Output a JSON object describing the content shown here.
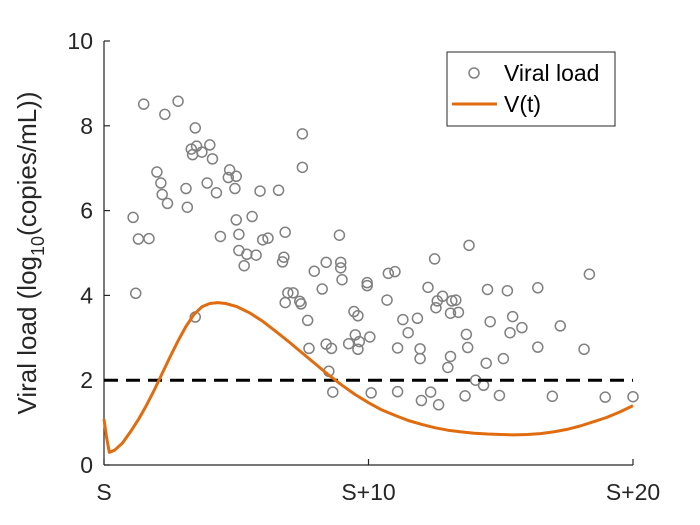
{
  "chart_data": {
    "type": "scatter",
    "ylabel_prefix": "Viral load (log",
    "ylabel_sub": "10",
    "ylabel_suffix": "(copies/mL))",
    "xlim": [
      0,
      20
    ],
    "ylim": [
      0,
      10
    ],
    "x_ticks": [
      {
        "value": 0,
        "label": "S"
      },
      {
        "value": 10,
        "label": "S+10"
      },
      {
        "value": 20,
        "label": "S+20"
      }
    ],
    "y_ticks": [
      {
        "value": 0,
        "label": "0"
      },
      {
        "value": 2,
        "label": "2"
      },
      {
        "value": 4,
        "label": "4"
      },
      {
        "value": 6,
        "label": "6"
      },
      {
        "value": 8,
        "label": "8"
      },
      {
        "value": 10,
        "label": "10"
      }
    ],
    "threshold": 2,
    "grid": false,
    "legend_position": "top-right",
    "legend": [
      "Viral load",
      "V(t)"
    ],
    "colors": {
      "scatter": "#808080",
      "curve": "#E06C0F",
      "threshold": "#000000",
      "axis": "#262626"
    },
    "scatter": [
      {
        "x": 1.1,
        "y": 5.84
      },
      {
        "x": 1.2,
        "y": 4.05
      },
      {
        "x": 1.3,
        "y": 5.33
      },
      {
        "x": 1.5,
        "y": 8.51
      },
      {
        "x": 1.7,
        "y": 5.34
      },
      {
        "x": 2.0,
        "y": 6.91
      },
      {
        "x": 2.15,
        "y": 6.65
      },
      {
        "x": 2.2,
        "y": 6.38
      },
      {
        "x": 2.3,
        "y": 8.27
      },
      {
        "x": 2.4,
        "y": 6.17
      },
      {
        "x": 2.8,
        "y": 8.58
      },
      {
        "x": 3.1,
        "y": 6.52
      },
      {
        "x": 3.15,
        "y": 6.08
      },
      {
        "x": 3.3,
        "y": 7.45
      },
      {
        "x": 3.35,
        "y": 7.32
      },
      {
        "x": 3.45,
        "y": 7.95
      },
      {
        "x": 3.5,
        "y": 7.52
      },
      {
        "x": 3.45,
        "y": 3.49
      },
      {
        "x": 3.7,
        "y": 7.38
      },
      {
        "x": 3.9,
        "y": 6.65
      },
      {
        "x": 4.0,
        "y": 7.55
      },
      {
        "x": 4.1,
        "y": 7.22
      },
      {
        "x": 4.25,
        "y": 6.42
      },
      {
        "x": 4.4,
        "y": 5.39
      },
      {
        "x": 4.75,
        "y": 6.96
      },
      {
        "x": 4.7,
        "y": 6.78
      },
      {
        "x": 4.95,
        "y": 6.52
      },
      {
        "x": 5.0,
        "y": 6.81
      },
      {
        "x": 5.0,
        "y": 5.78
      },
      {
        "x": 5.1,
        "y": 5.44
      },
      {
        "x": 5.1,
        "y": 5.06
      },
      {
        "x": 5.3,
        "y": 4.7
      },
      {
        "x": 5.4,
        "y": 4.97
      },
      {
        "x": 5.6,
        "y": 5.86
      },
      {
        "x": 5.75,
        "y": 4.95
      },
      {
        "x": 5.9,
        "y": 6.46
      },
      {
        "x": 6.0,
        "y": 5.31
      },
      {
        "x": 6.2,
        "y": 5.35
      },
      {
        "x": 6.6,
        "y": 6.48
      },
      {
        "x": 6.75,
        "y": 4.79
      },
      {
        "x": 6.8,
        "y": 4.9
      },
      {
        "x": 6.85,
        "y": 5.49
      },
      {
        "x": 6.85,
        "y": 3.83
      },
      {
        "x": 6.95,
        "y": 4.06
      },
      {
        "x": 7.15,
        "y": 4.06
      },
      {
        "x": 7.4,
        "y": 3.86
      },
      {
        "x": 7.45,
        "y": 3.8
      },
      {
        "x": 7.5,
        "y": 7.02
      },
      {
        "x": 7.5,
        "y": 7.81
      },
      {
        "x": 7.7,
        "y": 3.41
      },
      {
        "x": 7.75,
        "y": 2.75
      },
      {
        "x": 7.95,
        "y": 4.57
      },
      {
        "x": 8.25,
        "y": 4.15
      },
      {
        "x": 8.4,
        "y": 4.78
      },
      {
        "x": 8.4,
        "y": 2.85
      },
      {
        "x": 8.5,
        "y": 2.21
      },
      {
        "x": 8.6,
        "y": 2.75
      },
      {
        "x": 8.65,
        "y": 1.72
      },
      {
        "x": 8.9,
        "y": 5.42
      },
      {
        "x": 8.95,
        "y": 4.78
      },
      {
        "x": 8.95,
        "y": 4.65
      },
      {
        "x": 9.0,
        "y": 4.37
      },
      {
        "x": 9.25,
        "y": 2.86
      },
      {
        "x": 9.45,
        "y": 3.62
      },
      {
        "x": 9.5,
        "y": 3.07
      },
      {
        "x": 9.6,
        "y": 3.52
      },
      {
        "x": 9.6,
        "y": 2.73
      },
      {
        "x": 9.65,
        "y": 2.91
      },
      {
        "x": 9.95,
        "y": 4.3
      },
      {
        "x": 9.95,
        "y": 4.23
      },
      {
        "x": 10.05,
        "y": 3.02
      },
      {
        "x": 10.1,
        "y": 1.7
      },
      {
        "x": 10.7,
        "y": 3.89
      },
      {
        "x": 10.75,
        "y": 4.52
      },
      {
        "x": 11.0,
        "y": 4.56
      },
      {
        "x": 11.1,
        "y": 2.76
      },
      {
        "x": 11.1,
        "y": 1.73
      },
      {
        "x": 11.3,
        "y": 3.43
      },
      {
        "x": 11.5,
        "y": 3.12
      },
      {
        "x": 11.85,
        "y": 3.46
      },
      {
        "x": 11.95,
        "y": 2.74
      },
      {
        "x": 11.95,
        "y": 2.51
      },
      {
        "x": 12.0,
        "y": 1.52
      },
      {
        "x": 12.25,
        "y": 4.19
      },
      {
        "x": 12.35,
        "y": 1.72
      },
      {
        "x": 12.5,
        "y": 4.86
      },
      {
        "x": 12.55,
        "y": 3.71
      },
      {
        "x": 12.6,
        "y": 3.87
      },
      {
        "x": 12.65,
        "y": 1.42
      },
      {
        "x": 12.8,
        "y": 3.98
      },
      {
        "x": 13.0,
        "y": 2.3
      },
      {
        "x": 13.1,
        "y": 2.56
      },
      {
        "x": 13.1,
        "y": 3.58
      },
      {
        "x": 13.15,
        "y": 3.87
      },
      {
        "x": 13.3,
        "y": 3.89
      },
      {
        "x": 13.4,
        "y": 3.6
      },
      {
        "x": 13.65,
        "y": 1.63
      },
      {
        "x": 13.7,
        "y": 3.08
      },
      {
        "x": 13.75,
        "y": 2.77
      },
      {
        "x": 13.8,
        "y": 5.18
      },
      {
        "x": 14.05,
        "y": 2.0
      },
      {
        "x": 14.35,
        "y": 1.88
      },
      {
        "x": 14.5,
        "y": 4.14
      },
      {
        "x": 14.45,
        "y": 2.4
      },
      {
        "x": 14.6,
        "y": 3.38
      },
      {
        "x": 14.95,
        "y": 1.64
      },
      {
        "x": 15.1,
        "y": 2.51
      },
      {
        "x": 15.25,
        "y": 4.11
      },
      {
        "x": 15.35,
        "y": 3.12
      },
      {
        "x": 15.45,
        "y": 3.5
      },
      {
        "x": 15.8,
        "y": 3.24
      },
      {
        "x": 16.4,
        "y": 4.18
      },
      {
        "x": 16.4,
        "y": 2.78
      },
      {
        "x": 16.95,
        "y": 1.62
      },
      {
        "x": 17.25,
        "y": 3.28
      },
      {
        "x": 18.15,
        "y": 2.73
      },
      {
        "x": 18.35,
        "y": 4.5
      },
      {
        "x": 18.95,
        "y": 1.6
      },
      {
        "x": 20.0,
        "y": 1.61
      }
    ],
    "curve": [
      {
        "x": 0.0,
        "y": 1.08
      },
      {
        "x": 0.1,
        "y": 0.65
      },
      {
        "x": 0.2,
        "y": 0.3
      },
      {
        "x": 0.4,
        "y": 0.35
      },
      {
        "x": 0.7,
        "y": 0.52
      },
      {
        "x": 1.0,
        "y": 0.78
      },
      {
        "x": 1.3,
        "y": 1.07
      },
      {
        "x": 1.6,
        "y": 1.4
      },
      {
        "x": 1.9,
        "y": 1.77
      },
      {
        "x": 2.2,
        "y": 2.16
      },
      {
        "x": 2.5,
        "y": 2.55
      },
      {
        "x": 2.8,
        "y": 2.93
      },
      {
        "x": 3.1,
        "y": 3.27
      },
      {
        "x": 3.4,
        "y": 3.55
      },
      {
        "x": 3.7,
        "y": 3.73
      },
      {
        "x": 4.0,
        "y": 3.81
      },
      {
        "x": 4.3,
        "y": 3.83
      },
      {
        "x": 4.6,
        "y": 3.81
      },
      {
        "x": 5.0,
        "y": 3.74
      },
      {
        "x": 5.5,
        "y": 3.59
      },
      {
        "x": 6.0,
        "y": 3.39
      },
      {
        "x": 6.5,
        "y": 3.15
      },
      {
        "x": 7.0,
        "y": 2.9
      },
      {
        "x": 7.5,
        "y": 2.64
      },
      {
        "x": 8.0,
        "y": 2.38
      },
      {
        "x": 8.5,
        "y": 2.12
      },
      {
        "x": 9.0,
        "y": 1.88
      },
      {
        "x": 9.5,
        "y": 1.66
      },
      {
        "x": 10.0,
        "y": 1.47
      },
      {
        "x": 10.5,
        "y": 1.3
      },
      {
        "x": 11.0,
        "y": 1.17
      },
      {
        "x": 11.5,
        "y": 1.05
      },
      {
        "x": 12.0,
        "y": 0.96
      },
      {
        "x": 12.5,
        "y": 0.88
      },
      {
        "x": 13.0,
        "y": 0.82
      },
      {
        "x": 13.5,
        "y": 0.78
      },
      {
        "x": 14.0,
        "y": 0.75
      },
      {
        "x": 14.5,
        "y": 0.73
      },
      {
        "x": 15.0,
        "y": 0.72
      },
      {
        "x": 15.5,
        "y": 0.71
      },
      {
        "x": 16.0,
        "y": 0.72
      },
      {
        "x": 16.5,
        "y": 0.74
      },
      {
        "x": 17.0,
        "y": 0.78
      },
      {
        "x": 17.5,
        "y": 0.84
      },
      {
        "x": 18.0,
        "y": 0.92
      },
      {
        "x": 18.5,
        "y": 1.02
      },
      {
        "x": 19.0,
        "y": 1.12
      },
      {
        "x": 19.5,
        "y": 1.25
      },
      {
        "x": 20.0,
        "y": 1.4
      }
    ]
  }
}
